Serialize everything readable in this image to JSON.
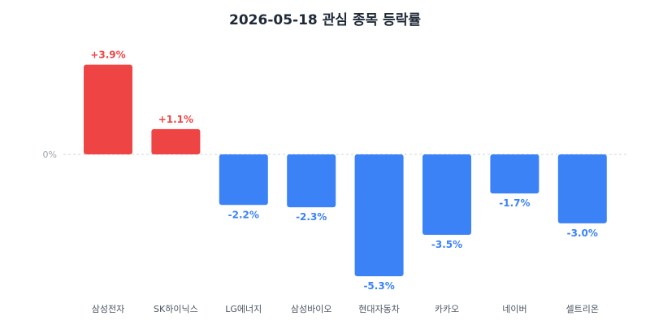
{
  "chart_data": {
    "type": "bar",
    "title": "2026-05-18 관심 종목 등락률",
    "categories": [
      "삼성전자",
      "SK하이닉스",
      "LG에너지",
      "삼성바이오",
      "현대자동차",
      "카카오",
      "네이버",
      "셀트리온"
    ],
    "values": [
      3.9,
      1.1,
      -2.2,
      -2.3,
      -5.3,
      -3.5,
      -1.7,
      -3.0
    ],
    "value_labels": [
      "+3.9%",
      "+1.1%",
      "-2.2%",
      "-2.3%",
      "-5.3%",
      "-3.5%",
      "-1.7%",
      "-3.0%"
    ],
    "zero_label": "0%",
    "xlabel": "",
    "ylabel": "",
    "ylim": [
      -5.3,
      3.9
    ],
    "grid": false,
    "colors": {
      "positive": "#ef4444",
      "negative": "#3b82f6",
      "zero_line": "#d1d5db"
    }
  }
}
